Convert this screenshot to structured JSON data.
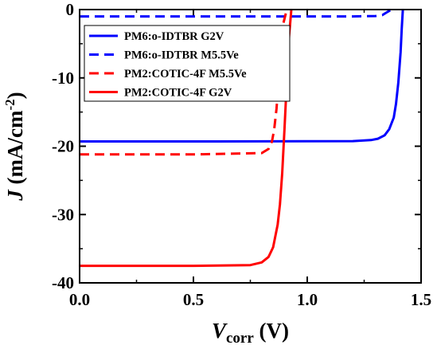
{
  "chart_data": {
    "type": "line",
    "xlabel": {
      "main": "V",
      "sub": "corr",
      "unit": " (V)"
    },
    "ylabel": {
      "main": "J",
      "unit": " (mA/cm",
      "sup": "-2",
      "close": ")"
    },
    "xlim": [
      0,
      1.5
    ],
    "ylim": [
      -40,
      0
    ],
    "xticks": [
      {
        "value": 0.0,
        "label": "0.0"
      },
      {
        "value": 0.5,
        "label": "0.5"
      },
      {
        "value": 1.0,
        "label": "1.0"
      },
      {
        "value": 1.5,
        "label": "1.5"
      }
    ],
    "yticks": [
      {
        "value": 0,
        "label": "0"
      },
      {
        "value": -10,
        "label": "-10"
      },
      {
        "value": -20,
        "label": "-20"
      },
      {
        "value": -30,
        "label": "-30"
      },
      {
        "value": -40,
        "label": "-40"
      }
    ],
    "grid": false,
    "legend_position": "top-left",
    "series": [
      {
        "name": "PM6:o-IDTBR G2V",
        "color": "#0000ff",
        "dash": "solid",
        "x": [
          0,
          0.6,
          1.2,
          1.28,
          1.31,
          1.34,
          1.36,
          1.38,
          1.39,
          1.4,
          1.41,
          1.415,
          1.42
        ],
        "y": [
          -19.3,
          -19.3,
          -19.25,
          -19.1,
          -18.9,
          -18.4,
          -17.5,
          -15.8,
          -13.8,
          -10.7,
          -6.2,
          -2.8,
          0
        ]
      },
      {
        "name": "PM6:o-IDTBR M5.5Ve",
        "color": "#0000ff",
        "dash": "dashed",
        "x": [
          0,
          0.6,
          1.2,
          1.3,
          1.33,
          1.35,
          1.37
        ],
        "y": [
          -1.0,
          -1.0,
          -1.0,
          -0.95,
          -0.8,
          -0.4,
          0
        ]
      },
      {
        "name": "PM2:COTIC-4F M5.5Ve",
        "color": "#ff0000",
        "dash": "dashed",
        "x": [
          0,
          0.5,
          0.8,
          0.83,
          0.845,
          0.855,
          0.865,
          0.875,
          0.885,
          0.895,
          0.91
        ],
        "y": [
          -21.2,
          -21.2,
          -21.0,
          -20.4,
          -19.3,
          -17.5,
          -14.5,
          -10.0,
          -5.5,
          -2.0,
          0
        ]
      },
      {
        "name": "PM2:COTIC-4F G2V",
        "color": "#ff0000",
        "dash": "solid",
        "x": [
          0,
          0.5,
          0.75,
          0.8,
          0.83,
          0.85,
          0.87,
          0.88,
          0.89,
          0.9,
          0.91,
          0.92,
          0.93
        ],
        "y": [
          -37.5,
          -37.5,
          -37.4,
          -37.0,
          -36.2,
          -34.8,
          -31.5,
          -28.5,
          -24.0,
          -17.5,
          -10.5,
          -4.0,
          0
        ]
      }
    ]
  }
}
